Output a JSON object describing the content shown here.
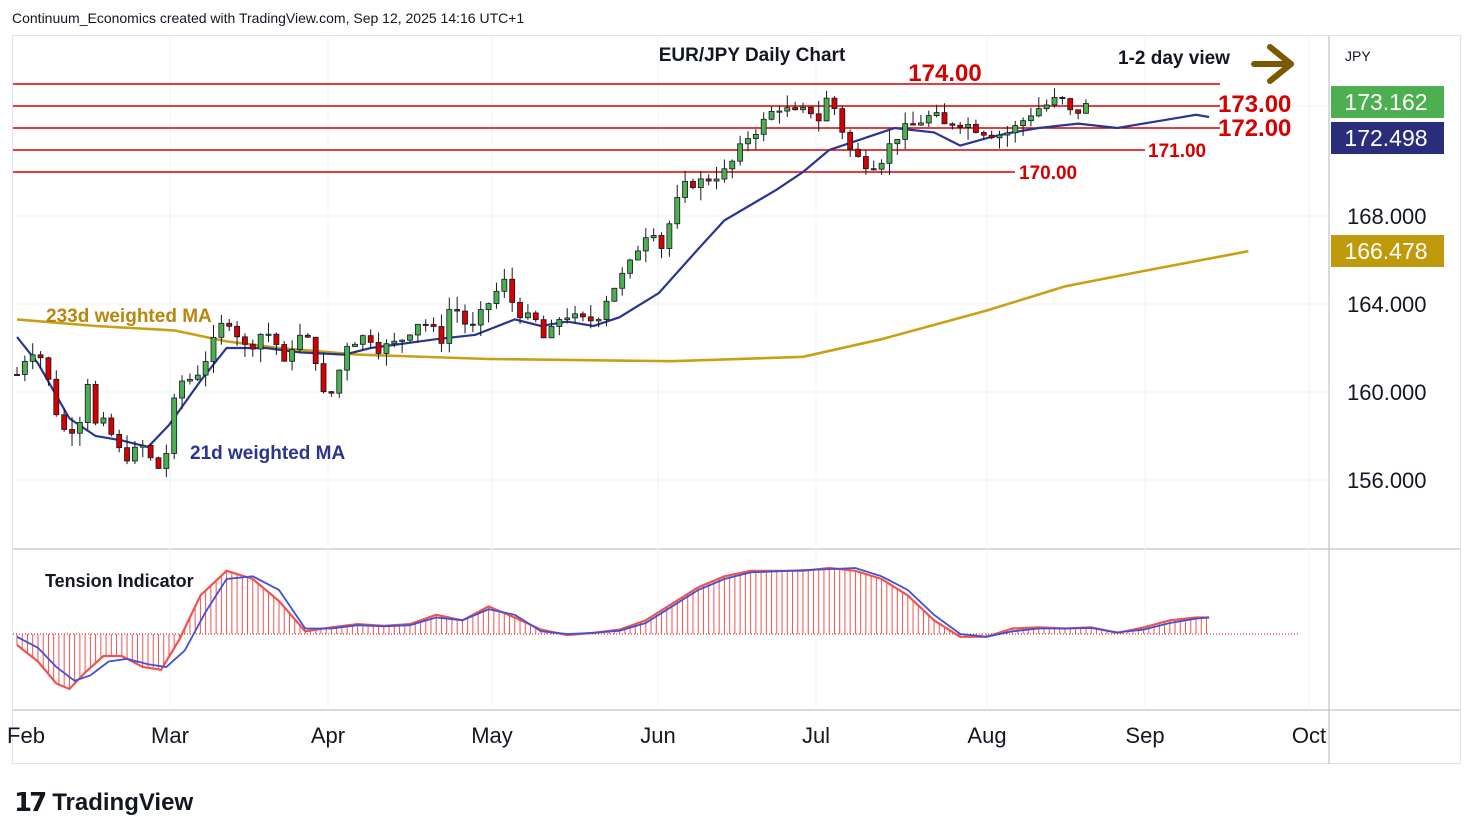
{
  "header": {
    "caption": "Continuum_Economics created with TradingView.com, Sep 12, 2025 14:16 UTC+1"
  },
  "footer": {
    "brand": "TradingView"
  },
  "chart_data": {
    "type": "candlestick",
    "title": "EUR/JPY Daily Chart",
    "view_label": "1-2 day view",
    "currency_label": "JPY",
    "y_axis": {
      "ticks": [
        156,
        160,
        164,
        168
      ],
      "tick_labels": [
        "156.000",
        "160.000",
        "164.000",
        "168.000"
      ],
      "range": [
        153.0,
        175.6
      ]
    },
    "x_axis": {
      "month_labels": [
        "Feb",
        "Mar",
        "Apr",
        "May",
        "Jun",
        "Jul",
        "Aug",
        "Sep",
        "Oct"
      ]
    },
    "price_tags": [
      {
        "label": "173.162",
        "value": 173.162,
        "color": "#4caf50"
      },
      {
        "label": "172.498",
        "value": 172.498,
        "color": "#2a2e7a"
      },
      {
        "label": "166.478",
        "value": 166.478,
        "color": "#bf9a0a"
      }
    ],
    "levels": [
      {
        "value": 174.0,
        "label": "174.00"
      },
      {
        "value": 173.0,
        "label": "173.00"
      },
      {
        "value": 172.0,
        "label": "172.00"
      },
      {
        "value": 171.0,
        "label": "171.00"
      },
      {
        "value": 170.0,
        "label": "170.00"
      }
    ],
    "ma_labels": {
      "ma233": "233d weighted MA",
      "ma21": "21d weighted MA"
    },
    "ma233_path": [
      [
        0,
        163.3
      ],
      [
        30,
        163.0
      ],
      [
        60,
        162.8
      ],
      [
        80,
        162.3
      ],
      [
        100,
        162.0
      ],
      [
        130,
        161.7
      ],
      [
        180,
        161.5
      ],
      [
        250,
        161.4
      ],
      [
        300,
        161.6
      ],
      [
        330,
        162.4
      ],
      [
        370,
        163.7
      ],
      [
        400,
        164.8
      ],
      [
        430,
        165.5
      ],
      [
        470,
        166.4
      ]
    ],
    "ma21_path": [
      [
        0,
        162.5
      ],
      [
        8,
        161.3
      ],
      [
        20,
        158.8
      ],
      [
        30,
        158.0
      ],
      [
        40,
        157.8
      ],
      [
        50,
        157.5
      ],
      [
        58,
        158.5
      ],
      [
        70,
        160.5
      ],
      [
        80,
        162.0
      ],
      [
        95,
        162.0
      ],
      [
        108,
        161.8
      ],
      [
        125,
        161.7
      ],
      [
        135,
        162.0
      ],
      [
        160,
        162.4
      ],
      [
        175,
        162.6
      ],
      [
        190,
        163.3
      ],
      [
        200,
        163.0
      ],
      [
        210,
        163.2
      ],
      [
        220,
        163.0
      ],
      [
        230,
        163.4
      ],
      [
        245,
        164.5
      ],
      [
        260,
        166.5
      ],
      [
        270,
        167.8
      ],
      [
        280,
        168.5
      ],
      [
        290,
        169.2
      ],
      [
        300,
        170.0
      ],
      [
        310,
        171.0
      ],
      [
        320,
        171.4
      ],
      [
        335,
        172.0
      ],
      [
        350,
        171.8
      ],
      [
        360,
        171.2
      ],
      [
        372,
        171.6
      ],
      [
        380,
        171.8
      ],
      [
        390,
        172.0
      ],
      [
        405,
        172.2
      ],
      [
        420,
        172.0
      ],
      [
        430,
        172.2
      ],
      [
        440,
        172.4
      ],
      [
        450,
        172.6
      ],
      [
        455,
        172.5
      ]
    ],
    "tension_label": "Tension Indicator",
    "tension": {
      "histogram": [
        [
          0,
          -0.2
        ],
        [
          8,
          -0.5
        ],
        [
          15,
          -0.9
        ],
        [
          20,
          -1.0
        ],
        [
          26,
          -0.7
        ],
        [
          33,
          -0.4
        ],
        [
          40,
          -0.4
        ],
        [
          48,
          -0.6
        ],
        [
          55,
          -0.65
        ],
        [
          62,
          -0.1
        ],
        [
          70,
          0.7
        ],
        [
          80,
          1.15
        ],
        [
          90,
          1.0
        ],
        [
          100,
          0.6
        ],
        [
          110,
          0.05
        ],
        [
          120,
          0.12
        ],
        [
          130,
          0.18
        ],
        [
          140,
          0.15
        ],
        [
          150,
          0.18
        ],
        [
          160,
          0.35
        ],
        [
          170,
          0.25
        ],
        [
          180,
          0.5
        ],
        [
          190,
          0.3
        ],
        [
          200,
          0.08
        ],
        [
          210,
          -0.02
        ],
        [
          220,
          0.02
        ],
        [
          230,
          0.08
        ],
        [
          240,
          0.25
        ],
        [
          250,
          0.55
        ],
        [
          260,
          0.85
        ],
        [
          270,
          1.05
        ],
        [
          280,
          1.15
        ],
        [
          290,
          1.15
        ],
        [
          300,
          1.15
        ],
        [
          310,
          1.2
        ],
        [
          320,
          1.15
        ],
        [
          330,
          1.0
        ],
        [
          340,
          0.7
        ],
        [
          350,
          0.25
        ],
        [
          360,
          -0.05
        ],
        [
          370,
          -0.05
        ],
        [
          380,
          0.1
        ],
        [
          390,
          0.12
        ],
        [
          400,
          0.1
        ],
        [
          410,
          0.12
        ],
        [
          420,
          0.02
        ],
        [
          430,
          0.12
        ],
        [
          440,
          0.25
        ],
        [
          450,
          0.3
        ],
        [
          455,
          0.3
        ]
      ],
      "signal": [
        [
          0,
          -0.05
        ],
        [
          8,
          -0.25
        ],
        [
          15,
          -0.6
        ],
        [
          22,
          -0.85
        ],
        [
          28,
          -0.75
        ],
        [
          35,
          -0.5
        ],
        [
          42,
          -0.45
        ],
        [
          50,
          -0.55
        ],
        [
          57,
          -0.6
        ],
        [
          64,
          -0.3
        ],
        [
          72,
          0.4
        ],
        [
          80,
          1.0
        ],
        [
          90,
          1.05
        ],
        [
          100,
          0.8
        ],
        [
          110,
          0.1
        ],
        [
          120,
          0.1
        ],
        [
          130,
          0.16
        ],
        [
          140,
          0.14
        ],
        [
          150,
          0.16
        ],
        [
          160,
          0.3
        ],
        [
          170,
          0.25
        ],
        [
          180,
          0.45
        ],
        [
          190,
          0.35
        ],
        [
          200,
          0.05
        ],
        [
          210,
          0.0
        ],
        [
          220,
          0.02
        ],
        [
          230,
          0.06
        ],
        [
          240,
          0.2
        ],
        [
          250,
          0.5
        ],
        [
          260,
          0.8
        ],
        [
          270,
          1.0
        ],
        [
          280,
          1.12
        ],
        [
          290,
          1.14
        ],
        [
          300,
          1.16
        ],
        [
          310,
          1.18
        ],
        [
          320,
          1.2
        ],
        [
          330,
          1.05
        ],
        [
          340,
          0.8
        ],
        [
          350,
          0.35
        ],
        [
          360,
          0.0
        ],
        [
          370,
          -0.05
        ],
        [
          380,
          0.05
        ],
        [
          390,
          0.1
        ],
        [
          400,
          0.1
        ],
        [
          410,
          0.11
        ],
        [
          420,
          0.03
        ],
        [
          430,
          0.08
        ],
        [
          440,
          0.2
        ],
        [
          450,
          0.28
        ],
        [
          455,
          0.3
        ]
      ]
    },
    "candles": []
  }
}
